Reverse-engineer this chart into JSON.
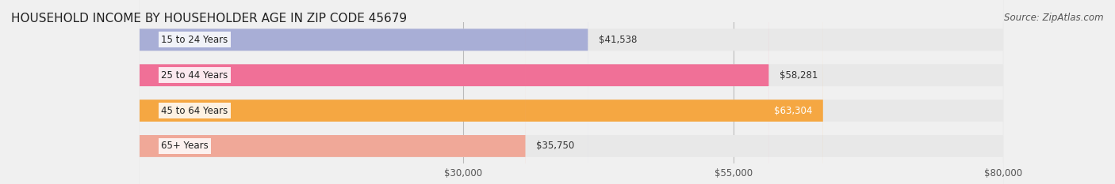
{
  "title": "HOUSEHOLD INCOME BY HOUSEHOLDER AGE IN ZIP CODE 45679",
  "source": "Source: ZipAtlas.com",
  "categories": [
    "15 to 24 Years",
    "25 to 44 Years",
    "45 to 64 Years",
    "65+ Years"
  ],
  "values": [
    41538,
    58281,
    63304,
    35750
  ],
  "bar_colors": [
    "#a8aed6",
    "#f07097",
    "#f5a742",
    "#f0a898"
  ],
  "label_colors": [
    "#333333",
    "#333333",
    "#ffffff",
    "#333333"
  ],
  "xlim": [
    0,
    80000
  ],
  "xticks": [
    30000,
    55000,
    80000
  ],
  "xtick_labels": [
    "$30,000",
    "$55,000",
    "$80,000"
  ],
  "value_labels": [
    "$41,538",
    "$58,281",
    "$63,304",
    "$35,750"
  ],
  "background_color": "#f0f0f0",
  "bar_background_color": "#e8e8e8",
  "title_fontsize": 11,
  "source_fontsize": 8.5,
  "bar_height": 0.62,
  "figsize": [
    14.06,
    2.33
  ]
}
